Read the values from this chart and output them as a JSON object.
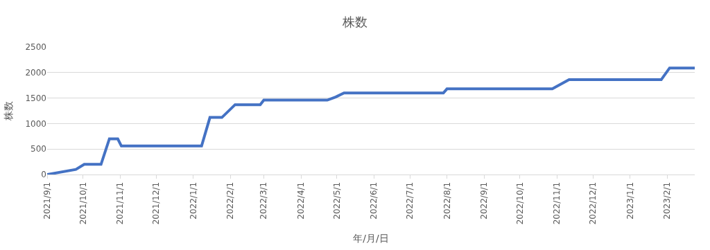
{
  "chart_data": {
    "type": "line",
    "title": "株数",
    "xlabel": "年/月/日",
    "ylabel": "株数",
    "x": [
      "2021-09-01",
      "2021-09-25",
      "2021-10-02",
      "2021-10-16",
      "2021-10-23",
      "2021-10-30",
      "2021-11-02",
      "2022-01-08",
      "2022-01-15",
      "2022-01-25",
      "2022-02-05",
      "2022-02-26",
      "2022-03-01",
      "2022-04-23",
      "2022-04-30",
      "2022-05-07",
      "2022-07-29",
      "2022-08-01",
      "2022-10-28",
      "2022-11-11",
      "2023-01-27",
      "2023-02-03",
      "2023-02-24"
    ],
    "series": [
      {
        "color": "#4472c4",
        "values": [
          0,
          100,
          200,
          200,
          700,
          700,
          560,
          560,
          1120,
          1120,
          1370,
          1370,
          1460,
          1460,
          1520,
          1600,
          1600,
          1680,
          1680,
          1860,
          1860,
          2090,
          2090
        ]
      }
    ],
    "xlim": [
      "2021-09-01",
      "2023-02-24"
    ],
    "xticks": [
      {
        "value": "2021-09-01",
        "label": "2021/9/1"
      },
      {
        "value": "2021-10-01",
        "label": "2021/10/1"
      },
      {
        "value": "2021-11-01",
        "label": "2021/11/1"
      },
      {
        "value": "2021-12-01",
        "label": "2021/12/1"
      },
      {
        "value": "2022-01-01",
        "label": "2022/1/1"
      },
      {
        "value": "2022-02-01",
        "label": "2022/2/1"
      },
      {
        "value": "2022-03-01",
        "label": "2022/3/1"
      },
      {
        "value": "2022-04-01",
        "label": "2022/4/1"
      },
      {
        "value": "2022-05-01",
        "label": "2022/5/1"
      },
      {
        "value": "2022-06-01",
        "label": "2022/6/1"
      },
      {
        "value": "2022-07-01",
        "label": "2022/7/1"
      },
      {
        "value": "2022-08-01",
        "label": "2022/8/1"
      },
      {
        "value": "2022-09-01",
        "label": "2022/9/1"
      },
      {
        "value": "2022-10-01",
        "label": "2022/10/1"
      },
      {
        "value": "2022-11-01",
        "label": "2022/11/1"
      },
      {
        "value": "2022-12-01",
        "label": "2022/12/1"
      },
      {
        "value": "2023-01-01",
        "label": "2023/1/1"
      },
      {
        "value": "2023-02-01",
        "label": "2023/2/1"
      }
    ],
    "ylim": [
      0,
      2500
    ],
    "yticks": [
      0,
      500,
      1000,
      1500,
      2000,
      2500
    ],
    "grid": "y",
    "marker": "none",
    "line_style": "solid"
  }
}
